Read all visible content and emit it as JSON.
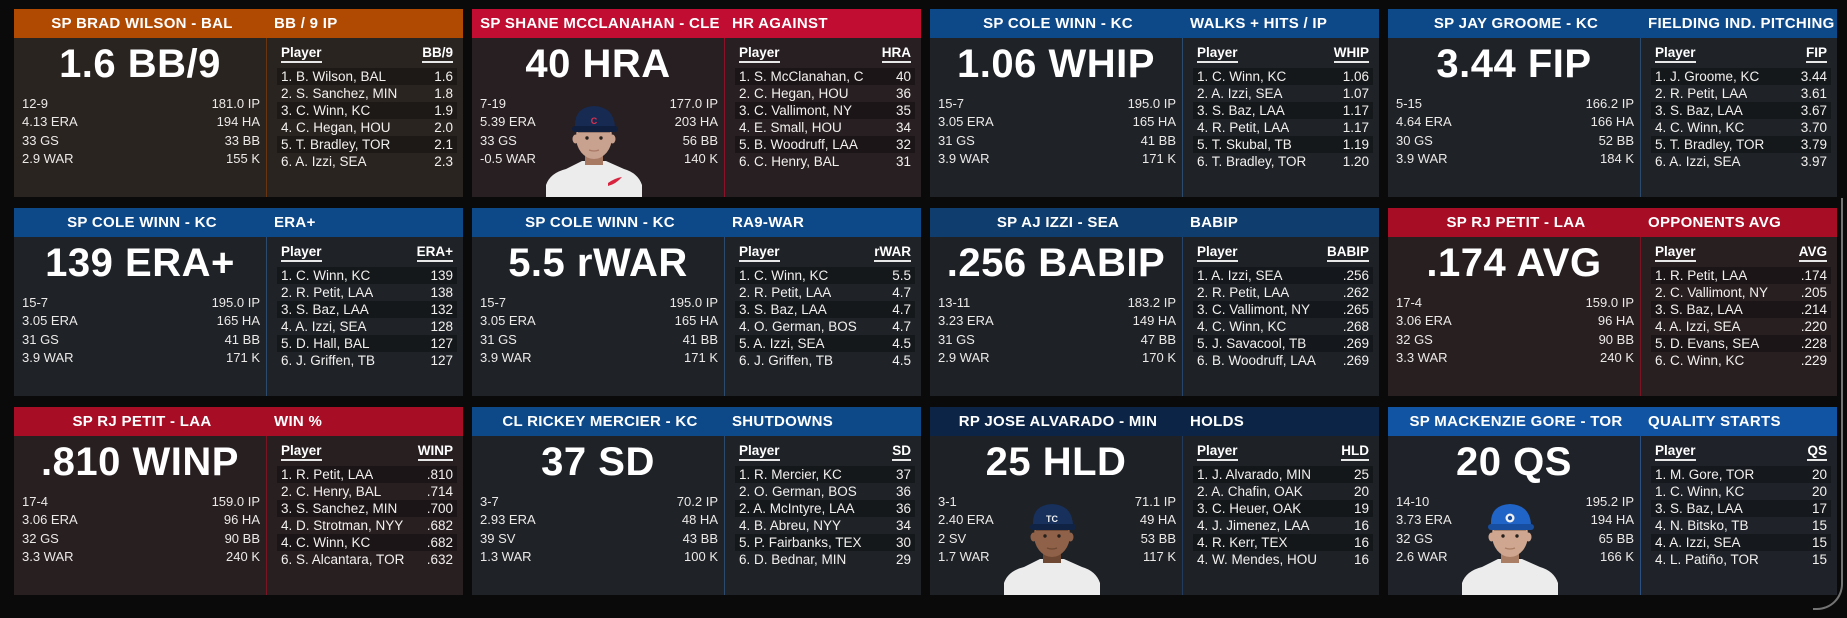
{
  "page": {
    "background": "#0a0a0b",
    "scrollbar_color": "#cdcdcd"
  },
  "panels": [
    {
      "header": {
        "player": "SP BRAD WILSON - BAL",
        "category": "BB / 9 IP"
      },
      "colors": {
        "header": "#b04a03",
        "body": "#2a2421",
        "divider": "#6b3410"
      },
      "big_stat": "1.6 BB/9",
      "stats_left": [
        "12-9",
        "4.13 ERA",
        "33 GS",
        "2.9 WAR"
      ],
      "stats_right": [
        "181.0 IP",
        "194 HA",
        "33 BB",
        "155 K"
      ],
      "photo": null,
      "table": {
        "player_col": "Player",
        "value_col": "BB/9",
        "rows": [
          {
            "player": "1. B. Wilson, BAL",
            "value": "1.6"
          },
          {
            "player": "2. S. Sanchez, MIN",
            "value": "1.8"
          },
          {
            "player": "3. C. Winn, KC",
            "value": "1.9"
          },
          {
            "player": "4. C. Hegan, HOU",
            "value": "2.0"
          },
          {
            "player": "5. T. Bradley, TOR",
            "value": "2.1"
          },
          {
            "player": "6. A. Izzi, SEA",
            "value": "2.3"
          }
        ]
      }
    },
    {
      "header": {
        "player": "SP SHANE MCCLANAHAN - CLE",
        "category": "HR AGAINST"
      },
      "colors": {
        "header": "#c00d31",
        "body": "#271f21",
        "divider": "#8c1028"
      },
      "big_stat": "40 HRA",
      "stats_left": [
        "7-19",
        "5.39 ERA",
        "33 GS",
        "-0.5 WAR"
      ],
      "stats_right": [
        "177.0 IP",
        "203 HA",
        "56 BB",
        "140 K"
      ],
      "photo": {
        "cap": "#172a52",
        "cap_brim": "#101f3e",
        "cap_logo": "C",
        "logo_color": "#e0314f",
        "skin": "#c9a18f",
        "skin_shadow": "#a87a64",
        "jersey": "#ececec",
        "swoosh": true
      },
      "table": {
        "player_col": "Player",
        "value_col": "HRA",
        "rows": [
          {
            "player": "1. S. McClanahan, C",
            "value": "40"
          },
          {
            "player": "2. C. Hegan, HOU",
            "value": "36"
          },
          {
            "player": "3. C. Vallimont, NY",
            "value": "35"
          },
          {
            "player": "4. E. Small, HOU",
            "value": "34"
          },
          {
            "player": "5. B. Woodruff, LAA",
            "value": "32"
          },
          {
            "player": "6. C. Henry, BAL",
            "value": "31"
          }
        ]
      }
    },
    {
      "header": {
        "player": "SP COLE WINN - KC",
        "category": "WALKS + HITS / IP"
      },
      "colors": {
        "header": "#0d4889",
        "body": "#1f2328",
        "divider": "#2c4a6e"
      },
      "big_stat": "1.06 WHIP",
      "stats_left": [
        "15-7",
        "3.05 ERA",
        "31 GS",
        "3.9 WAR"
      ],
      "stats_right": [
        "195.0 IP",
        "165 HA",
        "41 BB",
        "171 K"
      ],
      "photo": null,
      "table": {
        "player_col": "Player",
        "value_col": "WHIP",
        "rows": [
          {
            "player": "1. C. Winn, KC",
            "value": "1.06"
          },
          {
            "player": "2. A. Izzi, SEA",
            "value": "1.07"
          },
          {
            "player": "3. S. Baz, LAA",
            "value": "1.17"
          },
          {
            "player": "4. R. Petit, LAA",
            "value": "1.17"
          },
          {
            "player": "5. T. Skubal, TB",
            "value": "1.19"
          },
          {
            "player": "6. T. Bradley, TOR",
            "value": "1.20"
          }
        ]
      }
    },
    {
      "header": {
        "player": "SP JAY GROOME - KC",
        "category": "FIELDING IND. PITCHING"
      },
      "colors": {
        "header": "#0d4889",
        "body": "#1f2328",
        "divider": "#2c4a6e"
      },
      "big_stat": "3.44 FIP",
      "stats_left": [
        "5-15",
        "4.64 ERA",
        "30 GS",
        "3.9 WAR"
      ],
      "stats_right": [
        "166.2 IP",
        "166 HA",
        "52 BB",
        "184 K"
      ],
      "photo": null,
      "table": {
        "player_col": "Player",
        "value_col": "FIP",
        "rows": [
          {
            "player": "1. J. Groome, KC",
            "value": "3.44"
          },
          {
            "player": "2. R. Petit, LAA",
            "value": "3.61"
          },
          {
            "player": "3. S. Baz, LAA",
            "value": "3.67"
          },
          {
            "player": "4. C. Winn, KC",
            "value": "3.70"
          },
          {
            "player": "5. T. Bradley, TOR",
            "value": "3.79"
          },
          {
            "player": "6. A. Izzi, SEA",
            "value": "3.97"
          }
        ]
      }
    },
    {
      "header": {
        "player": "SP COLE WINN - KC",
        "category": "ERA+"
      },
      "colors": {
        "header": "#0d4889",
        "body": "#1f2328",
        "divider": "#2c4a6e"
      },
      "big_stat": "139 ERA+",
      "stats_left": [
        "15-7",
        "3.05 ERA",
        "31 GS",
        "3.9 WAR"
      ],
      "stats_right": [
        "195.0 IP",
        "165 HA",
        "41 BB",
        "171 K"
      ],
      "photo": null,
      "table": {
        "player_col": "Player",
        "value_col": "ERA+",
        "rows": [
          {
            "player": "1. C. Winn, KC",
            "value": "139"
          },
          {
            "player": "2. R. Petit, LAA",
            "value": "138"
          },
          {
            "player": "3. S. Baz, LAA",
            "value": "132"
          },
          {
            "player": "4. A. Izzi, SEA",
            "value": "128"
          },
          {
            "player": "5. D. Hall, BAL",
            "value": "127"
          },
          {
            "player": "6. J. Griffen, TB",
            "value": "127"
          }
        ]
      }
    },
    {
      "header": {
        "player": "SP COLE WINN - KC",
        "category": "RA9-WAR"
      },
      "colors": {
        "header": "#0d4889",
        "body": "#1f2328",
        "divider": "#2c4a6e"
      },
      "big_stat": "5.5 rWAR",
      "stats_left": [
        "15-7",
        "3.05 ERA",
        "31 GS",
        "3.9 WAR"
      ],
      "stats_right": [
        "195.0 IP",
        "165 HA",
        "41 BB",
        "171 K"
      ],
      "photo": null,
      "table": {
        "player_col": "Player",
        "value_col": "rWAR",
        "rows": [
          {
            "player": "1. C. Winn, KC",
            "value": "5.5"
          },
          {
            "player": "2. R. Petit, LAA",
            "value": "4.7"
          },
          {
            "player": "3. S. Baz, LAA",
            "value": "4.7"
          },
          {
            "player": "4. O. German, BOS",
            "value": "4.7"
          },
          {
            "player": "5. A. Izzi, SEA",
            "value": "4.5"
          },
          {
            "player": "6. J. Griffen, TB",
            "value": "4.5"
          }
        ]
      }
    },
    {
      "header": {
        "player": "SP AJ IZZI - SEA",
        "category": "BABIP"
      },
      "colors": {
        "header": "#0e3d6e",
        "body": "#1e2227",
        "divider": "#27456b"
      },
      "big_stat": ".256 BABIP",
      "stats_left": [
        "13-11",
        "3.23 ERA",
        "31 GS",
        "2.9 WAR"
      ],
      "stats_right": [
        "183.2 IP",
        "149 HA",
        "47 BB",
        "170 K"
      ],
      "photo": null,
      "table": {
        "player_col": "Player",
        "value_col": "BABIP",
        "rows": [
          {
            "player": "1. A. Izzi, SEA",
            "value": ".256"
          },
          {
            "player": "2. R. Petit, LAA",
            "value": ".262"
          },
          {
            "player": "3. C. Vallimont, NY",
            "value": ".265"
          },
          {
            "player": "4. C. Winn, KC",
            "value": ".268"
          },
          {
            "player": "5. J. Savacool, TB",
            "value": ".269"
          },
          {
            "player": "6. B. Woodruff, LAA",
            "value": ".269"
          }
        ]
      }
    },
    {
      "header": {
        "player": "SP RJ PETIT - LAA",
        "category": "OPPONENTS AVG"
      },
      "colors": {
        "header": "#a80d26",
        "body": "#281f21",
        "divider": "#7c1322"
      },
      "big_stat": ".174 AVG",
      "stats_left": [
        "17-4",
        "3.06 ERA",
        "32 GS",
        "3.3 WAR"
      ],
      "stats_right": [
        "159.0 IP",
        "96 HA",
        "90 BB",
        "240 K"
      ],
      "photo": null,
      "table": {
        "player_col": "Player",
        "value_col": "AVG",
        "rows": [
          {
            "player": "1. R. Petit, LAA",
            "value": ".174"
          },
          {
            "player": "2. C. Vallimont, NY",
            "value": ".205"
          },
          {
            "player": "3. S. Baz, LAA",
            "value": ".214"
          },
          {
            "player": "4. A. Izzi, SEA",
            "value": ".220"
          },
          {
            "player": "5. D. Evans, SEA",
            "value": ".228"
          },
          {
            "player": "6. C. Winn, KC",
            "value": ".229"
          }
        ]
      }
    },
    {
      "header": {
        "player": "SP RJ PETIT - LAA",
        "category": "WIN %"
      },
      "colors": {
        "header": "#a80d26",
        "body": "#281f21",
        "divider": "#7c1322"
      },
      "big_stat": ".810 WINP",
      "stats_left": [
        "17-4",
        "3.06 ERA",
        "32 GS",
        "3.3 WAR"
      ],
      "stats_right": [
        "159.0 IP",
        "96 HA",
        "90 BB",
        "240 K"
      ],
      "photo": null,
      "table": {
        "player_col": "Player",
        "value_col": "WINP",
        "rows": [
          {
            "player": "1. R. Petit, LAA",
            "value": ".810"
          },
          {
            "player": "2. C. Henry, BAL",
            "value": ".714"
          },
          {
            "player": "3. S. Sanchez, MIN",
            "value": ".700"
          },
          {
            "player": "4. D. Strotman, NYY",
            "value": ".682"
          },
          {
            "player": "4. C. Winn, KC",
            "value": ".682"
          },
          {
            "player": "6. S. Alcantara, TOR",
            "value": ".632"
          }
        ]
      }
    },
    {
      "header": {
        "player": "CL RICKEY MERCIER - KC",
        "category": "SHUTDOWNS"
      },
      "colors": {
        "header": "#0d4889",
        "body": "#1f2328",
        "divider": "#2c4a6e"
      },
      "big_stat": "37 SD",
      "stats_left": [
        "3-7",
        "2.93 ERA",
        "39 SV",
        "1.3 WAR"
      ],
      "stats_right": [
        "70.2 IP",
        "48 HA",
        "43 BB",
        "100 K"
      ],
      "photo": null,
      "table": {
        "player_col": "Player",
        "value_col": "SD",
        "rows": [
          {
            "player": "1. R. Mercier, KC",
            "value": "37"
          },
          {
            "player": "2. O. German, BOS",
            "value": "36"
          },
          {
            "player": "2. A. McIntyre, LAA",
            "value": "36"
          },
          {
            "player": "4. B. Abreu, NYY",
            "value": "34"
          },
          {
            "player": "5. P. Fairbanks, TEX",
            "value": "30"
          },
          {
            "player": "6. D. Bednar, MIN",
            "value": "29"
          }
        ]
      }
    },
    {
      "header": {
        "player": "RP JOSE ALVARADO - MIN",
        "category": "HOLDS"
      },
      "colors": {
        "header": "#0c2547",
        "body": "#1e2126",
        "divider": "#223a5e"
      },
      "big_stat": "25 HLD",
      "stats_left": [
        "3-1",
        "2.40 ERA",
        "2 SV",
        "1.7 WAR"
      ],
      "stats_right": [
        "71.1 IP",
        "49 HA",
        "53 BB",
        "117 K"
      ],
      "photo": {
        "cap": "#17305c",
        "cap_brim": "#102344",
        "cap_logo": "TC",
        "logo_color": "#f2f2f2",
        "skin": "#8f6148",
        "skin_shadow": "#6e4832",
        "jersey": "#ececec",
        "swoosh": false
      },
      "table": {
        "player_col": "Player",
        "value_col": "HLD",
        "rows": [
          {
            "player": "1. J. Alvarado, MIN",
            "value": "25"
          },
          {
            "player": "2. A. Chafin, OAK",
            "value": "20"
          },
          {
            "player": "3. C. Heuer, OAK",
            "value": "19"
          },
          {
            "player": "4. J. Jimenez, LAA",
            "value": "16"
          },
          {
            "player": "4. R. Kerr, TEX",
            "value": "16"
          },
          {
            "player": "4. W. Mendes, HOU",
            "value": "16"
          }
        ]
      }
    },
    {
      "header": {
        "player": "SP MACKENZIE GORE - TOR",
        "category": "QUALITY STARTS"
      },
      "colors": {
        "header": "#1254a4",
        "body": "#1f2329",
        "divider": "#2c5180"
      },
      "big_stat": "20 QS",
      "stats_left": [
        "14-10",
        "3.73 ERA",
        "32 GS",
        "2.6 WAR"
      ],
      "stats_right": [
        "195.2 IP",
        "194 HA",
        "65 BB",
        "166 K"
      ],
      "photo": {
        "cap": "#2064c8",
        "cap_brim": "#174ea0",
        "cap_logo": "",
        "logo_color": "#174ea0",
        "skin": "#cfa68f",
        "skin_shadow": "#aa7e64",
        "jersey": "#ececec",
        "swoosh": false
      },
      "table": {
        "player_col": "Player",
        "value_col": "QS",
        "rows": [
          {
            "player": "1. M. Gore, TOR",
            "value": "20"
          },
          {
            "player": "1. C. Winn, KC",
            "value": "20"
          },
          {
            "player": "3. S. Baz, LAA",
            "value": "17"
          },
          {
            "player": "4. N. Bitsko, TB",
            "value": "15"
          },
          {
            "player": "4. A. Izzi, SEA",
            "value": "15"
          },
          {
            "player": "4. L. Patiño, TOR",
            "value": "15"
          }
        ]
      }
    }
  ]
}
